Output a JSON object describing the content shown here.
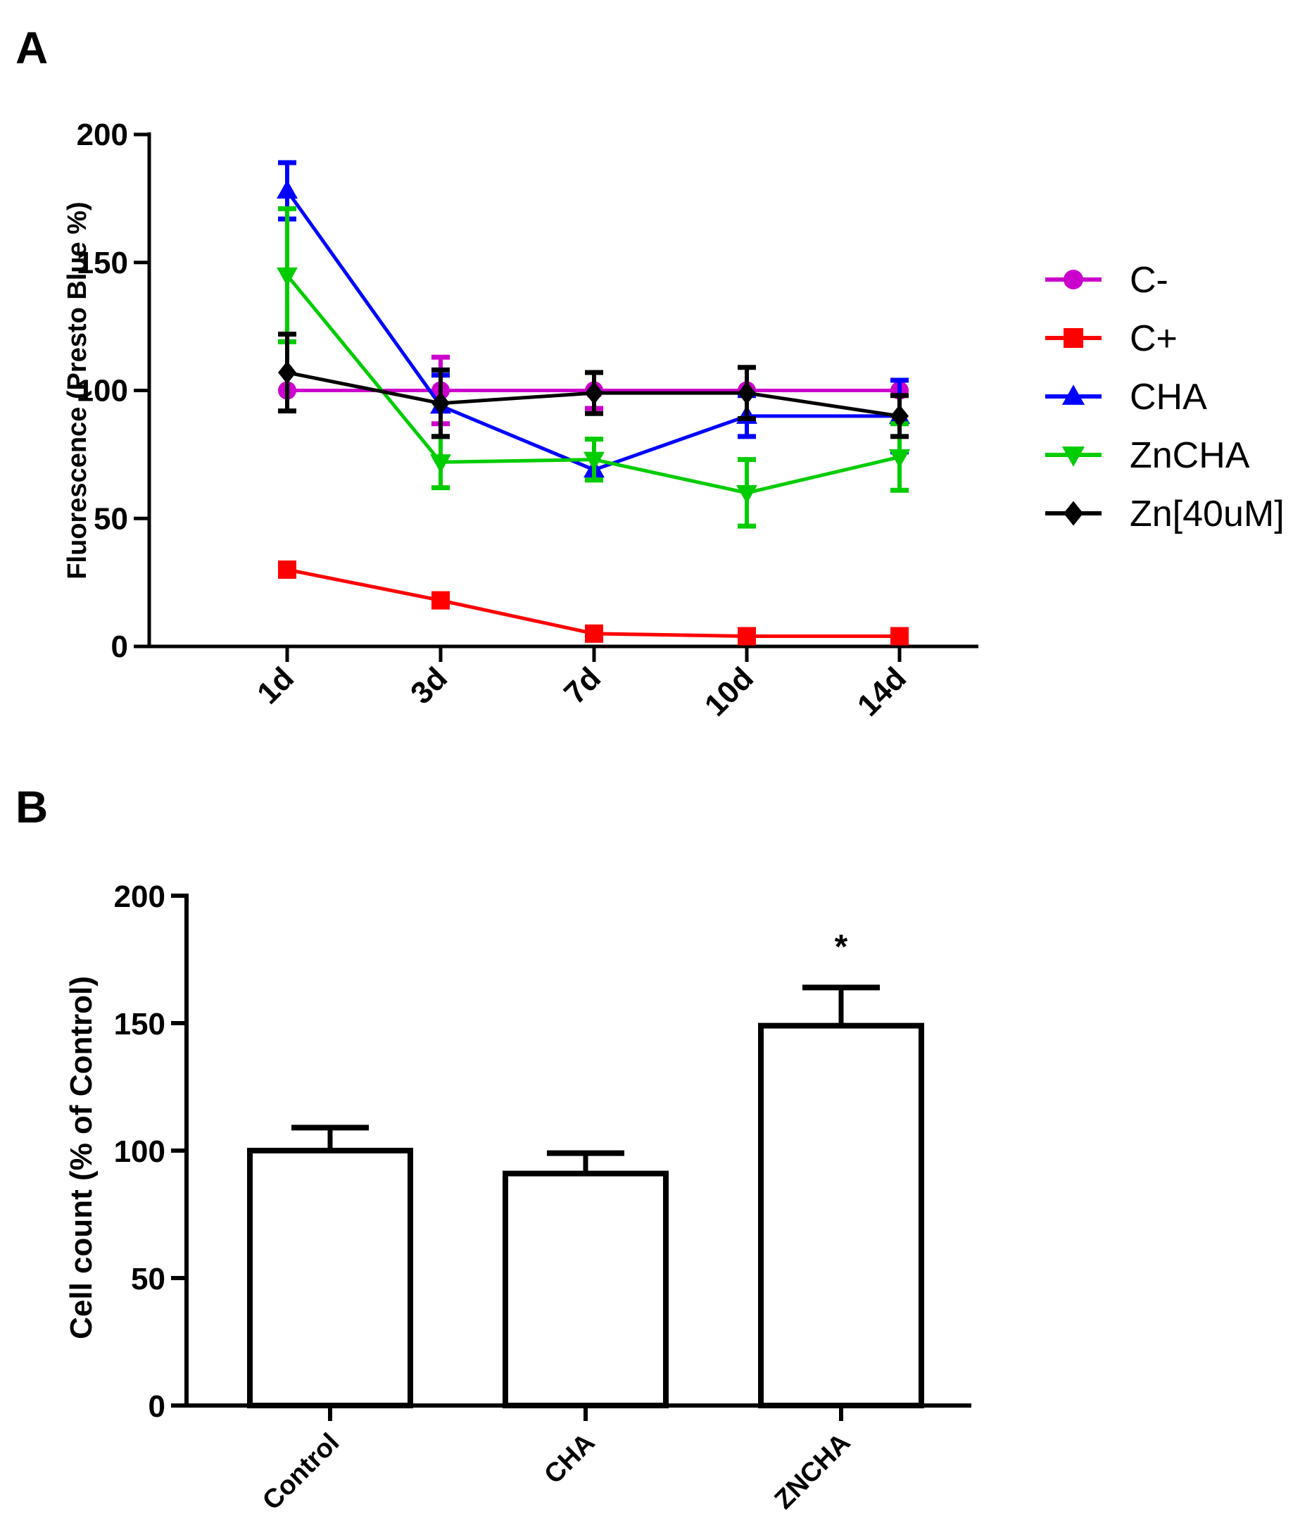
{
  "panel_a_letter": "A",
  "panel_b_letter": "B",
  "chart_data": [
    {
      "type": "line",
      "ylabel": "Fluorescence (Presto  Blue %)",
      "xlabel": "",
      "categories": [
        "1d",
        "3d",
        "7d",
        "10d",
        "14d"
      ],
      "ylim": [
        0,
        200
      ],
      "yticks": [
        0,
        50,
        100,
        150,
        200
      ],
      "legend_position": "right",
      "series": [
        {
          "name": "C-",
          "color": "#cc00cc",
          "marker": "circle",
          "values": [
            100,
            100,
            100,
            100,
            100
          ],
          "errors": [
            0,
            13,
            7,
            0,
            0
          ]
        },
        {
          "name": "C+",
          "color": "#ff0000",
          "marker": "square",
          "values": [
            30,
            18,
            5,
            4,
            4
          ],
          "errors": [
            0,
            0,
            0,
            0,
            0
          ]
        },
        {
          "name": "CHA",
          "color": "#0000ff",
          "marker": "triangle-up",
          "values": [
            178,
            94,
            69,
            90,
            90
          ],
          "errors": [
            11,
            12,
            0,
            8,
            14
          ]
        },
        {
          "name": "ZnCHA",
          "color": "#00cc00",
          "marker": "triangle-down",
          "values": [
            145,
            72,
            73,
            60,
            74
          ],
          "errors": [
            26,
            10,
            8,
            13,
            13
          ]
        },
        {
          "name": "Zn[40uM]",
          "color": "#000000",
          "marker": "diamond",
          "values": [
            107,
            95,
            99,
            99,
            90
          ],
          "errors": [
            15,
            13,
            8,
            10,
            8
          ]
        }
      ]
    },
    {
      "type": "bar",
      "ylabel": "Cell count (% of Control)",
      "xlabel": "",
      "categories": [
        "Control",
        "CHA",
        "ZNCHA"
      ],
      "values": [
        100,
        91,
        149
      ],
      "errors": [
        9,
        8,
        15
      ],
      "ylim": [
        0,
        200
      ],
      "yticks": [
        0,
        50,
        100,
        150,
        200
      ],
      "annotations": [
        {
          "category": "ZNCHA",
          "text": "*"
        }
      ]
    }
  ]
}
